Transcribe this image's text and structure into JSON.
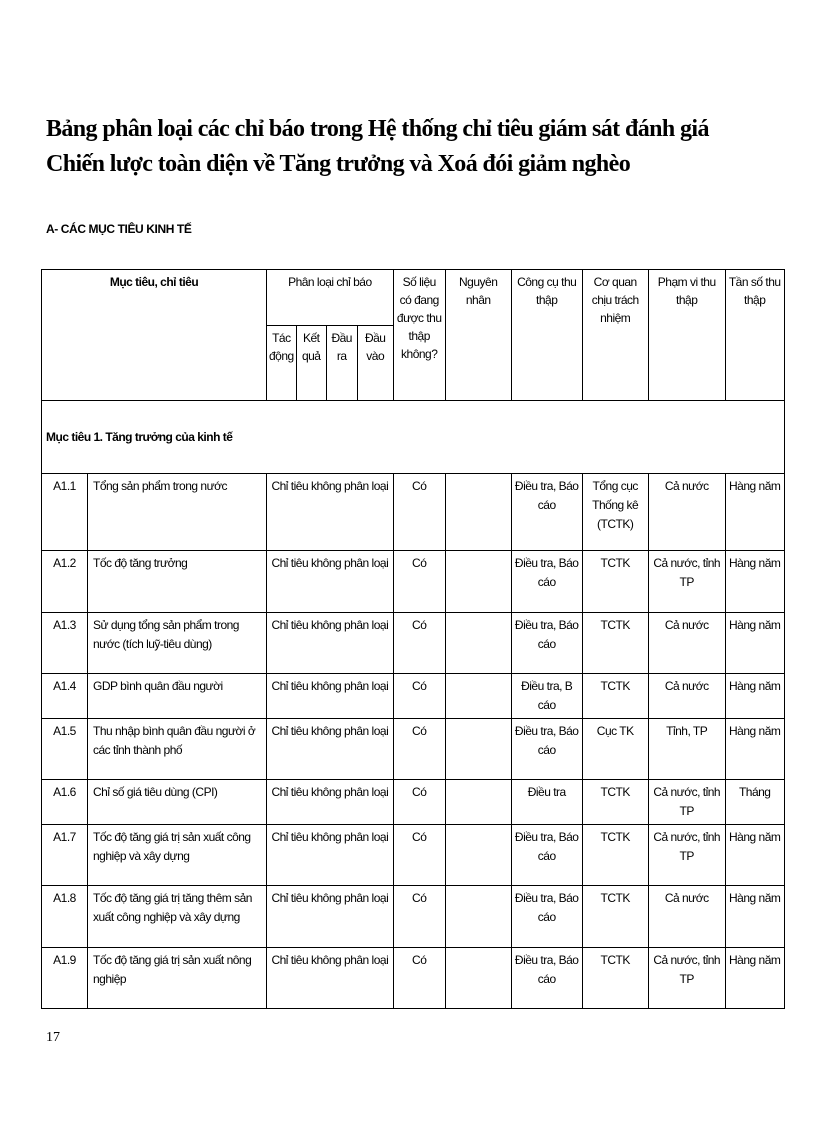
{
  "title": [
    "Bảng phân loại các chỉ báo trong Hệ thống chỉ tiêu giám sát đánh giá",
    "Chiến lược toàn diện về Tăng trưởng và Xoá đói giảm nghèo"
  ],
  "section": "A- CÁC MỤC TIÊU KINH TẾ",
  "headers": {
    "goal": "Mục tiêu, chỉ tiêu",
    "classification": "Phân loại chỉ báo",
    "impact": "Tác động",
    "result": "Kết quả",
    "output": "Đầu ra",
    "input": "Đầu vào",
    "collected": "Số liệu có đang được thu thập không?",
    "reason": "Nguyên nhân",
    "tool": "Công cụ thu thập",
    "agency": "Cơ quan chịu trách nhiệm",
    "scope": "Phạm vi thu thập",
    "frequency": "Tần số thu thập"
  },
  "group": "Mục tiêu 1. Tăng trưởng của kinh tế",
  "rows": [
    {
      "code": "A1.1",
      "name": "Tổng sản phẩm trong nước",
      "cls": "Chỉ tiêu không phân loại",
      "collected": "Có",
      "reason": "",
      "tool": "Điều tra, Báo cáo",
      "agency": "Tổng cục Thống kê (TCTK)",
      "scope": "Cả nước",
      "freq": "Hàng năm"
    },
    {
      "code": "A1.2",
      "name": "Tốc độ tăng trưởng",
      "cls": "Chỉ tiêu không phân loại",
      "collected": "Có",
      "reason": "",
      "tool": "Điều tra, Báo cáo",
      "agency": "TCTK",
      "scope": "Cả nước, tỉnh TP",
      "freq": "Hàng năm"
    },
    {
      "code": "A1.3",
      "name": "Sử dụng tổng sản phẩm trong nước (tích luỹ-tiêu dùng)",
      "cls": "Chỉ tiêu không phân loại",
      "collected": "Có",
      "reason": "",
      "tool": "Điều tra, Báo cáo",
      "agency": "TCTK",
      "scope": "Cả nước",
      "freq": "Hàng năm"
    },
    {
      "code": "A1.4",
      "name": "GDP bình quân đầu người",
      "cls": "Chỉ tiêu không phân loại",
      "collected": "Có",
      "reason": "",
      "tool": "Điều tra, B cáo",
      "agency": "TCTK",
      "scope": "Cả nước",
      "freq": "Hàng năm"
    },
    {
      "code": "A1.5",
      "name": "Thu nhập bình quân đầu người ở các tỉnh thành phố",
      "cls": "Chỉ tiêu không phân loại",
      "collected": "Có",
      "reason": "",
      "tool": "Điều tra, Báo cáo",
      "agency": "Cục TK",
      "scope": "Tỉnh, TP",
      "freq": "Hàng năm"
    },
    {
      "code": "A1.6",
      "name": "Chỉ số giá tiêu dùng (CPI)",
      "cls": "Chỉ tiêu không phân loại",
      "collected": "Có",
      "reason": "",
      "tool": "Điều tra",
      "agency": "TCTK",
      "scope": "Cả nước, tỉnh TP",
      "freq": "Tháng"
    },
    {
      "code": "A1.7",
      "name": "Tốc độ tăng giá trị sản xuất công nghiệp và xây dựng",
      "cls": "Chỉ tiêu không phân loại",
      "collected": "Có",
      "reason": "",
      "tool": "Điều tra, Báo cáo",
      "agency": "TCTK",
      "scope": "Cả nước, tỉnh TP",
      "freq": "Hàng năm"
    },
    {
      "code": "A1.8",
      "name": "Tốc độ tăng giá trị tăng thêm sản xuất công nghiệp và xây dựng",
      "cls": "Chỉ tiêu không phân loại",
      "collected": "Có",
      "reason": "",
      "tool": "Điều tra, Báo cáo",
      "agency": "TCTK",
      "scope": "Cả nước",
      "freq": "Hàng năm"
    },
    {
      "code": "A1.9",
      "name": "Tốc độ tăng giá trị sản xuất nông nghiệp",
      "cls": "Chỉ tiêu không phân loại",
      "collected": "Có",
      "reason": "",
      "tool": "Điều tra, Báo cáo",
      "agency": "TCTK",
      "scope": "Cả nước, tỉnh TP",
      "freq": "Hàng năm"
    }
  ],
  "page_number": "17"
}
